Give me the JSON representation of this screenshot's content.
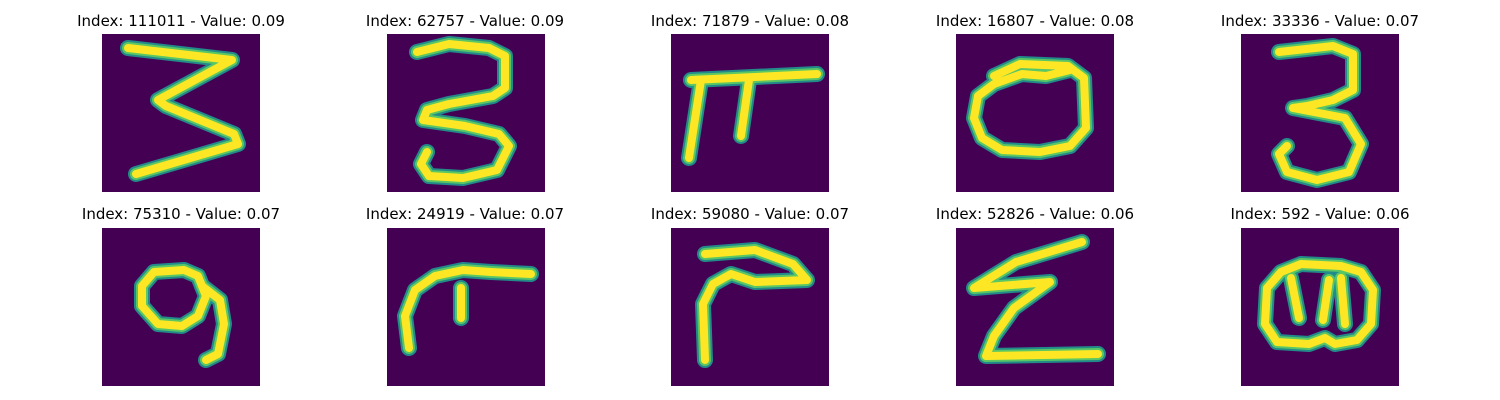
{
  "colors": {
    "background": "#440154",
    "stroke_outer": "#21918c",
    "stroke_mid": "#5ec962",
    "stroke_inner": "#fde725"
  },
  "panels": [
    {
      "title": "Index: 111011 - Value: 0.09",
      "glyph": "3"
    },
    {
      "title": "Index: 62757 - Value: 0.09",
      "glyph": "3"
    },
    {
      "title": "Index: 71879 - Value: 0.08",
      "glyph": "pi-like"
    },
    {
      "title": "Index: 16807 - Value: 0.08",
      "glyph": "0"
    },
    {
      "title": "Index: 33336 - Value: 0.07",
      "glyph": "3"
    },
    {
      "title": "Index: 75310 - Value: 0.07",
      "glyph": "9"
    },
    {
      "title": "Index: 24919 - Value: 0.07",
      "glyph": "hook"
    },
    {
      "title": "Index: 59080 - Value: 0.07",
      "glyph": "7-like"
    },
    {
      "title": "Index: 52826 - Value: 0.06",
      "glyph": "sigma-like"
    },
    {
      "title": "Index: 592 - Value: 0.06",
      "glyph": "8-like"
    }
  ]
}
